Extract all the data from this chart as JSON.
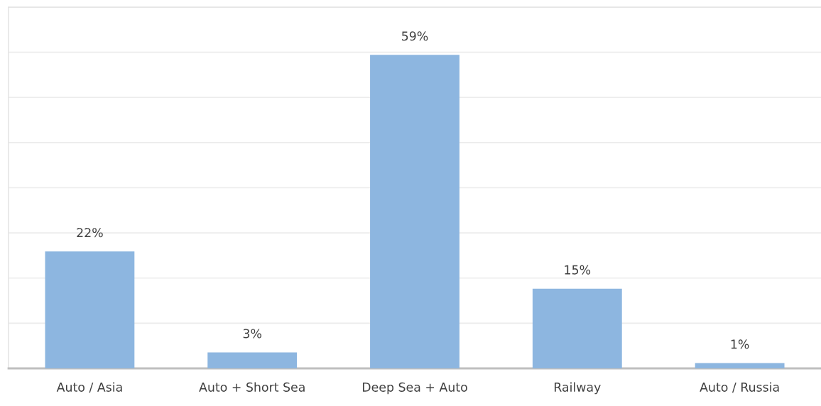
{
  "chart_data": {
    "type": "bar",
    "categories": [
      "Auto / Asia",
      "Auto + Short Sea",
      "Deep Sea + Auto",
      "Railway",
      "Auto / Russia"
    ],
    "values": [
      22,
      3,
      59,
      15,
      1
    ],
    "value_labels": [
      "22%",
      "3%",
      "59%",
      "15%",
      "1%"
    ],
    "color": "#8db6e0",
    "ylim": [
      0,
      68
    ],
    "yticks": [
      {
        "value": 0,
        "label": null
      },
      {
        "value": 8.5,
        "label": null
      },
      {
        "value": 17,
        "label": null
      },
      {
        "value": 25.5,
        "label": null
      },
      {
        "value": 34,
        "label": null
      },
      {
        "value": 42.5,
        "label": null
      },
      {
        "value": 51,
        "label": null
      },
      {
        "value": 59.5,
        "label": null
      },
      {
        "value": 68,
        "label": null
      }
    ],
    "grid": "y",
    "tick_labels": "x"
  }
}
